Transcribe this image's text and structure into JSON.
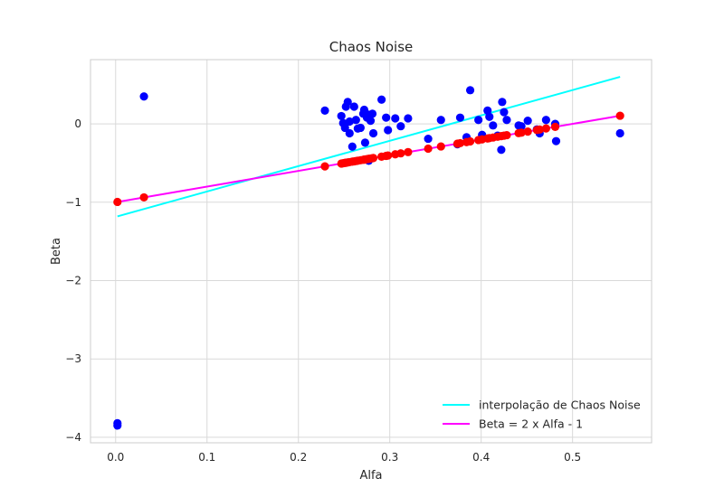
{
  "chart_data": {
    "type": "scatter",
    "title": "Chaos Noise",
    "xlabel": "Alfa",
    "ylabel": "Beta",
    "xlim": [
      -0.0275,
      0.5865
    ],
    "ylim": [
      -4.07,
      0.82
    ],
    "xticks": [
      0.0,
      0.1,
      0.2,
      0.3,
      0.4,
      0.5
    ],
    "xtick_labels": [
      "0.0",
      "0.1",
      "0.2",
      "0.3",
      "0.4",
      "0.5"
    ],
    "yticks": [
      -4,
      -3,
      -2,
      -1,
      0
    ],
    "ytick_labels": [
      "−4",
      "−3",
      "−2",
      "−1",
      "0"
    ],
    "grid": true,
    "legend_position": "bottom-right",
    "colors": {
      "observed": "#0000ff",
      "predicted": "#ff0000",
      "interpolation": "#00ffff",
      "theory": "#ff00ff",
      "grid": "#d9d9d9",
      "axes_edge": "#cccccc"
    },
    "lines": [
      {
        "name": "interpolação de Chaos Noise",
        "color": "#00ffff",
        "x": [
          0.002,
          0.552
        ],
        "y": [
          -1.18,
          0.6
        ]
      },
      {
        "name": "Beta = 2 x Alfa - 1",
        "color": "#ff00ff",
        "x": [
          0.002,
          0.552
        ],
        "y": [
          -0.996,
          0.104
        ]
      }
    ],
    "observed_points": {
      "color": "#0000ff",
      "x": [
        0.002,
        0.002,
        0.031,
        0.229,
        0.247,
        0.249,
        0.251,
        0.252,
        0.254,
        0.256,
        0.256,
        0.259,
        0.261,
        0.263,
        0.265,
        0.268,
        0.271,
        0.272,
        0.273,
        0.275,
        0.276,
        0.277,
        0.279,
        0.281,
        0.282,
        0.291,
        0.296,
        0.298,
        0.306,
        0.312,
        0.32,
        0.342,
        0.356,
        0.374,
        0.377,
        0.384,
        0.388,
        0.397,
        0.401,
        0.407,
        0.409,
        0.413,
        0.418,
        0.422,
        0.423,
        0.425,
        0.428,
        0.441,
        0.444,
        0.451,
        0.461,
        0.464,
        0.471,
        0.481,
        0.482,
        0.552
      ],
      "y": [
        -3.82,
        -3.85,
        0.35,
        0.17,
        0.1,
        0.01,
        -0.05,
        0.22,
        0.28,
        -0.12,
        0.03,
        -0.29,
        0.22,
        0.05,
        -0.06,
        -0.05,
        0.13,
        0.18,
        -0.24,
        0.08,
        0.12,
        -0.47,
        0.04,
        0.13,
        -0.12,
        0.31,
        0.08,
        -0.08,
        0.07,
        -0.03,
        0.07,
        -0.19,
        0.05,
        -0.26,
        0.08,
        -0.17,
        0.43,
        0.05,
        -0.14,
        0.17,
        0.09,
        -0.02,
        -0.15,
        -0.33,
        0.28,
        0.15,
        0.05,
        -0.02,
        -0.03,
        0.04,
        -0.07,
        -0.12,
        0.05,
        0.0,
        -0.22,
        -0.12
      ]
    },
    "predicted_points": {
      "color": "#ff0000",
      "x": [
        0.002,
        0.031,
        0.229,
        0.247,
        0.249,
        0.251,
        0.252,
        0.254,
        0.256,
        0.259,
        0.261,
        0.263,
        0.265,
        0.268,
        0.271,
        0.272,
        0.273,
        0.275,
        0.276,
        0.277,
        0.279,
        0.281,
        0.282,
        0.291,
        0.296,
        0.298,
        0.306,
        0.312,
        0.32,
        0.342,
        0.356,
        0.374,
        0.377,
        0.384,
        0.388,
        0.397,
        0.401,
        0.407,
        0.409,
        0.413,
        0.418,
        0.422,
        0.425,
        0.428,
        0.441,
        0.444,
        0.451,
        0.461,
        0.464,
        0.471,
        0.481,
        0.552
      ],
      "y": [
        -0.996,
        -0.938,
        -0.542,
        -0.506,
        -0.502,
        -0.498,
        -0.496,
        -0.492,
        -0.488,
        -0.482,
        -0.478,
        -0.474,
        -0.47,
        -0.464,
        -0.458,
        -0.456,
        -0.454,
        -0.45,
        -0.448,
        -0.446,
        -0.442,
        -0.438,
        -0.436,
        -0.418,
        -0.408,
        -0.404,
        -0.388,
        -0.376,
        -0.36,
        -0.316,
        -0.288,
        -0.252,
        -0.246,
        -0.232,
        -0.224,
        -0.206,
        -0.198,
        -0.186,
        -0.182,
        -0.174,
        -0.164,
        -0.156,
        -0.15,
        -0.144,
        -0.118,
        -0.112,
        -0.098,
        -0.078,
        -0.072,
        -0.058,
        -0.038,
        0.104
      ]
    },
    "legend": [
      {
        "label": "interpolação de Chaos Noise",
        "color": "#00ffff"
      },
      {
        "label": "Beta = 2 x Alfa - 1",
        "color": "#ff00ff"
      }
    ]
  }
}
